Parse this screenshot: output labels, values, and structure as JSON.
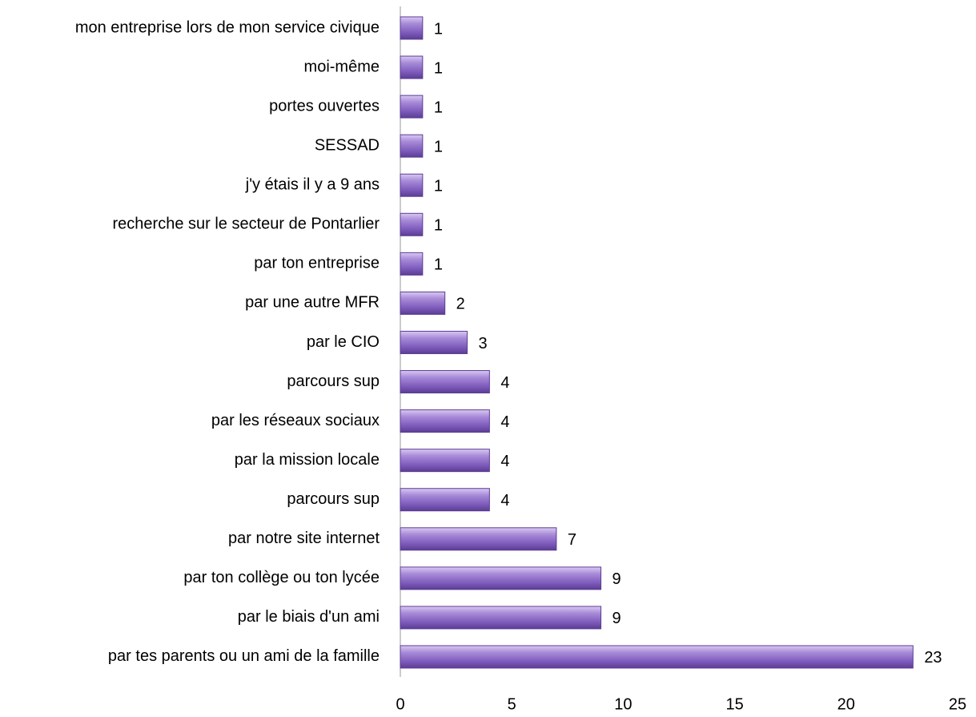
{
  "chart_data": {
    "type": "bar",
    "orientation": "horizontal",
    "categories": [
      "mon entreprise lors de mon service civique",
      "moi-même",
      "portes ouvertes",
      "SESSAD",
      "j'y étais il y a 9 ans",
      "recherche sur le secteur de Pontarlier",
      "par ton entreprise",
      "par une autre MFR",
      "par le CIO",
      "parcours sup",
      "par les réseaux sociaux",
      "par la mission locale",
      "parcours sup",
      "par notre site internet",
      "par ton collège ou ton lycée",
      "par le biais d'un ami",
      "par tes parents ou un ami de la famille"
    ],
    "values": [
      1,
      1,
      1,
      1,
      1,
      1,
      1,
      2,
      3,
      4,
      4,
      4,
      4,
      7,
      9,
      9,
      23
    ],
    "color": "#8a6bbf",
    "xlim": [
      0,
      25
    ],
    "xticks": [
      0,
      5,
      10,
      15,
      20,
      25
    ],
    "grid": false
  }
}
